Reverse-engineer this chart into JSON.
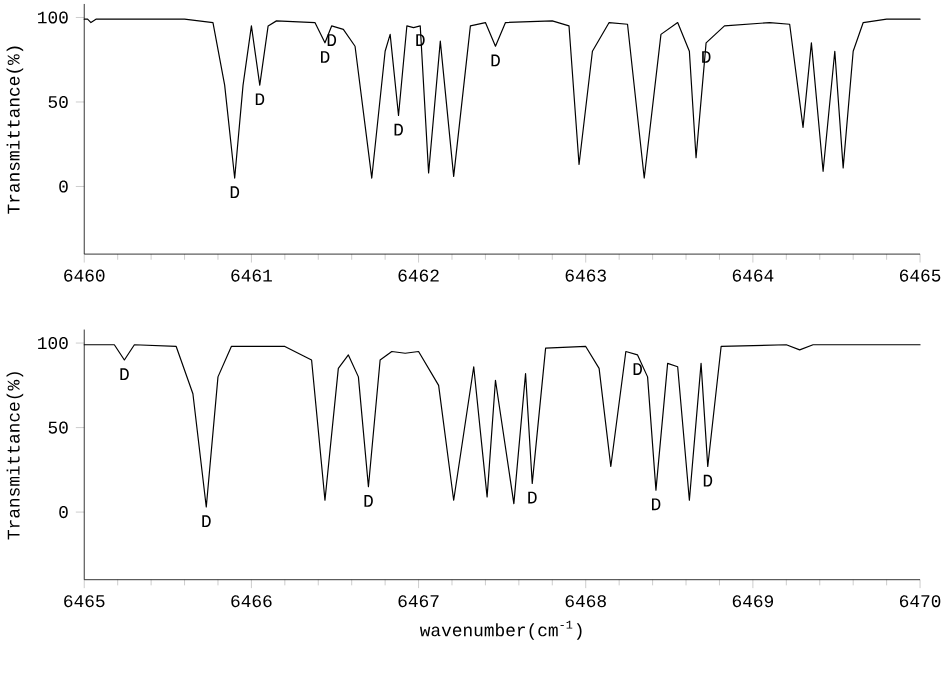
{
  "chart_data": [
    {
      "type": "line",
      "ylabel": "Transmittance(%)",
      "xlim": [
        6460,
        6465
      ],
      "ylim": [
        -40,
        108
      ],
      "xticks": [
        6460,
        6461,
        6462,
        6463,
        6464,
        6465
      ],
      "yticks": [
        0,
        50,
        100
      ],
      "series": [
        {
          "color": "#000000",
          "x": [
            6460.0,
            6460.02,
            6460.04,
            6460.07,
            6460.3,
            6460.6,
            6460.77,
            6460.84,
            6460.9,
            6460.95,
            6461.0,
            6461.05,
            6461.1,
            6461.15,
            6461.38,
            6461.44,
            6461.48,
            6461.55,
            6461.62,
            6461.72,
            6461.8,
            6461.83,
            6461.88,
            6461.93,
            6461.97,
            6462.01,
            6462.06,
            6462.13,
            6462.21,
            6462.31,
            6462.4,
            6462.46,
            6462.52,
            6462.8,
            6462.9,
            6462.96,
            6463.04,
            6463.14,
            6463.25,
            6463.35,
            6463.45,
            6463.55,
            6463.62,
            6463.66,
            6463.72,
            6463.83,
            6464.1,
            6464.22,
            6464.3,
            6464.35,
            6464.42,
            6464.49,
            6464.54,
            6464.6,
            6464.66,
            6464.8,
            6465.0
          ],
          "values": [
            99,
            99,
            97,
            99,
            99,
            99,
            97,
            60,
            5,
            60,
            95,
            60,
            95,
            98,
            97,
            85,
            95,
            93,
            83,
            5,
            80,
            90,
            42,
            95,
            94,
            95,
            8,
            86,
            6,
            95,
            97,
            83,
            97,
            98,
            95,
            13,
            80,
            97,
            96,
            5,
            90,
            97,
            80,
            17,
            85,
            95,
            97,
            96,
            35,
            85,
            9,
            80,
            11,
            80,
            97,
            99,
            99
          ]
        }
      ],
      "annotations": [
        {
          "text": "D",
          "x": 6460.9,
          "y": 5
        },
        {
          "text": "D",
          "x": 6461.05,
          "y": 60
        },
        {
          "text": "D",
          "x": 6461.44,
          "y": 85
        },
        {
          "text": "D",
          "x": 6461.48,
          "y": 95
        },
        {
          "text": "D",
          "x": 6461.88,
          "y": 42
        },
        {
          "text": "D",
          "x": 6462.01,
          "y": 95
        },
        {
          "text": "D",
          "x": 6462.46,
          "y": 83
        },
        {
          "text": "D",
          "x": 6463.72,
          "y": 85
        }
      ]
    },
    {
      "type": "line",
      "ylabel": "Transmittance(%)",
      "xlabel": "wavenumber(cm$^{-1}$)",
      "xlim": [
        6465,
        6470
      ],
      "ylim": [
        -40,
        108
      ],
      "xticks": [
        6465,
        6466,
        6467,
        6468,
        6469,
        6470
      ],
      "yticks": [
        0,
        50,
        100
      ],
      "series": [
        {
          "color": "#000000",
          "x": [
            6465.0,
            6465.18,
            6465.24,
            6465.3,
            6465.55,
            6465.65,
            6465.73,
            6465.8,
            6465.88,
            6466.2,
            6466.36,
            6466.44,
            6466.52,
            6466.58,
            6466.64,
            6466.7,
            6466.77,
            6466.84,
            6466.92,
            6467.0,
            6467.12,
            6467.21,
            6467.33,
            6467.41,
            6467.46,
            6467.57,
            6467.64,
            6467.68,
            6467.76,
            6468.0,
            6468.08,
            6468.15,
            6468.24,
            6468.31,
            6468.37,
            6468.42,
            6468.49,
            6468.55,
            6468.62,
            6468.69,
            6468.73,
            6468.81,
            6469.2,
            6469.28,
            6469.36,
            6470.0
          ],
          "values": [
            99,
            99,
            90,
            99,
            98,
            70,
            3,
            80,
            98,
            98,
            90,
            7,
            85,
            93,
            80,
            15,
            90,
            95,
            94,
            95,
            75,
            7,
            86,
            9,
            78,
            5,
            82,
            17,
            97,
            98,
            85,
            27,
            95,
            93,
            80,
            13,
            88,
            86,
            7,
            88,
            27,
            98,
            99,
            96,
            99,
            99
          ]
        }
      ],
      "annotations": [
        {
          "text": "D",
          "x": 6465.24,
          "y": 90
        },
        {
          "text": "D",
          "x": 6465.73,
          "y": 3
        },
        {
          "text": "D",
          "x": 6466.7,
          "y": 15
        },
        {
          "text": "D",
          "x": 6467.68,
          "y": 17
        },
        {
          "text": "D",
          "x": 6468.31,
          "y": 93
        },
        {
          "text": "D",
          "x": 6468.42,
          "y": 13
        },
        {
          "text": "D",
          "x": 6468.73,
          "y": 27
        }
      ]
    }
  ]
}
